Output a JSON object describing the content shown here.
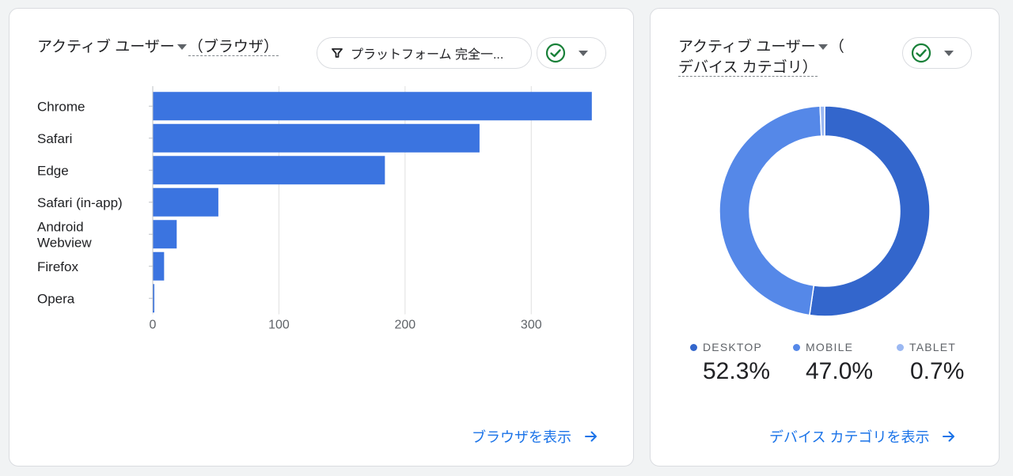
{
  "browser_card": {
    "title_prefix": "アクティブ ユーザー",
    "title_dim": "（ブラウザ）",
    "filter_label": "プラットフォーム 完全一...",
    "footer_link": "ブラウザを表示"
  },
  "device_card": {
    "title_prefix": "アクティブ ユーザー",
    "title_paren": "（",
    "title_dim": "デバイス カテゴリ）",
    "footer_link": "デバイス カテゴリを表示"
  },
  "colors": {
    "bar": "#3b74e0",
    "desktop": "#3366cc",
    "mobile": "#5588e8",
    "tablet": "#9bb8f2",
    "check": "#188038",
    "link": "#1a73e8"
  },
  "chart_data": [
    {
      "type": "bar",
      "orientation": "horizontal",
      "categories": [
        "Chrome",
        "Safari",
        "Edge",
        "Safari (in-app)",
        "Android Webview",
        "Firefox",
        "Opera"
      ],
      "category_lines": [
        [
          "Chrome"
        ],
        [
          "Safari"
        ],
        [
          "Edge"
        ],
        [
          "Safari (in-app)"
        ],
        [
          "Android",
          "Webview"
        ],
        [
          "Firefox"
        ],
        [
          "Opera"
        ]
      ],
      "values": [
        348,
        259,
        184,
        52,
        19,
        9,
        1
      ],
      "xlim": [
        0,
        350
      ],
      "xticks": [
        0,
        100,
        200,
        300
      ],
      "xtick_labels": [
        "0",
        "100",
        "200",
        "300"
      ],
      "grid": true
    },
    {
      "type": "pie",
      "donut": true,
      "labels": [
        "DESKTOP",
        "MOBILE",
        "TABLET"
      ],
      "values": [
        52.3,
        47.0,
        0.7
      ],
      "value_labels": [
        "52.3%",
        "47.0%",
        "0.7%"
      ]
    }
  ]
}
